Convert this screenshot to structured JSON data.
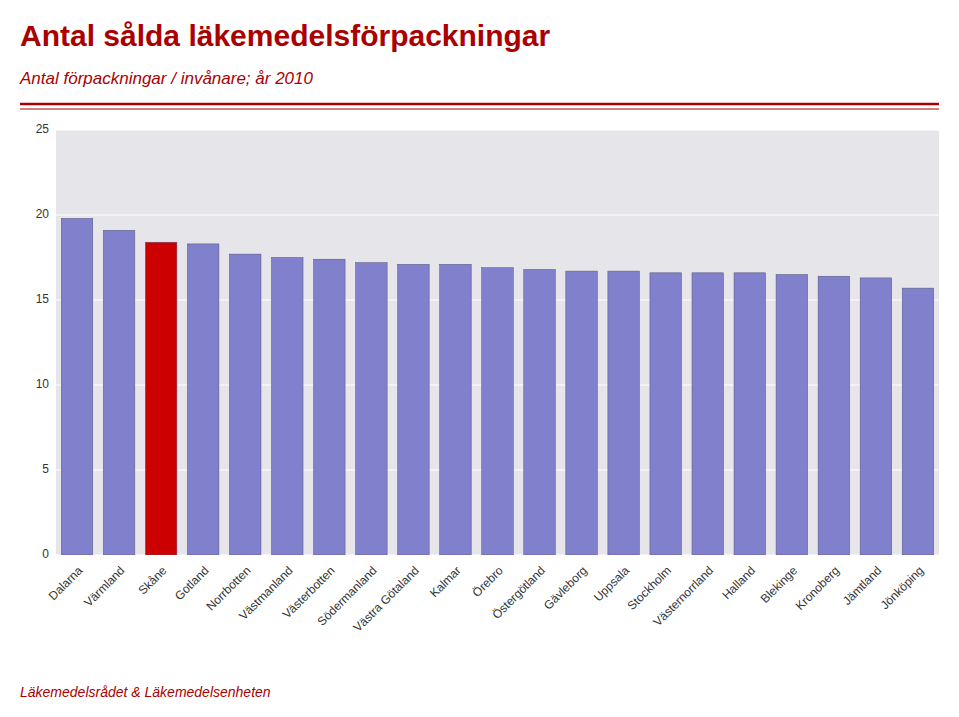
{
  "chart_data": {
    "type": "bar",
    "title": "Antal sålda läkemedelsförpackningar",
    "subtitle": "Antal förpackningar / invånare; år 2010",
    "annotations": [
      "Läkemedelsrådet & Läkemedelsenheten"
    ],
    "categories": [
      "Dalarna",
      "Värmland",
      "Skåne",
      "Gotland",
      "Norrbotten",
      "Västmanland",
      "Västerbotten",
      "Södermanland",
      "Västra Götaland",
      "Kalmar",
      "Örebro",
      "Östergötland",
      "Gävleborg",
      "Uppsala",
      "Stockholm",
      "Västernorrland",
      "Halland",
      "Blekinge",
      "Kronoberg",
      "Jämtland",
      "Jönköping"
    ],
    "values": [
      19.8,
      19.1,
      18.4,
      18.3,
      17.7,
      17.5,
      17.4,
      17.2,
      17.1,
      17.1,
      16.9,
      16.8,
      16.7,
      16.7,
      16.6,
      16.6,
      16.6,
      16.5,
      16.4,
      16.3,
      15.7
    ],
    "colors": [
      "#8080cc",
      "#8080cc",
      "#cc0000",
      "#8080cc",
      "#8080cc",
      "#8080cc",
      "#8080cc",
      "#8080cc",
      "#8080cc",
      "#8080cc",
      "#8080cc",
      "#8080cc",
      "#8080cc",
      "#8080cc",
      "#8080cc",
      "#8080cc",
      "#8080cc",
      "#8080cc",
      "#8080cc",
      "#8080cc",
      "#8080cc"
    ],
    "ylim": [
      0,
      25
    ],
    "yticks": [
      0,
      5,
      10,
      15,
      20,
      25
    ],
    "grid": true
  }
}
